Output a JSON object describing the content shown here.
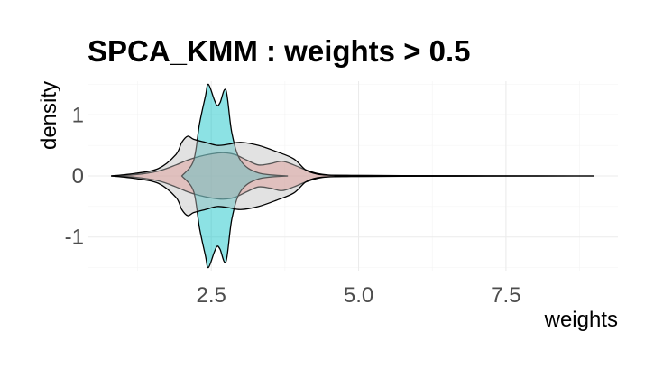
{
  "chart_data": {
    "type": "area",
    "title": "SPCA_KMM : weights > 0.5",
    "xlabel": "weights",
    "ylabel": "density",
    "xlim": [
      0.4,
      9.4
    ],
    "ylim": [
      -1.55,
      1.55
    ],
    "x_ticks": [
      2.5,
      5.0,
      7.5
    ],
    "x_tick_labels": [
      "2.5",
      "5.0",
      "7.5"
    ],
    "y_ticks": [
      -1,
      0,
      1
    ],
    "y_tick_labels": [
      "-1",
      "0",
      "1"
    ],
    "grid": true,
    "legend": "none",
    "mirrored": true,
    "series": [
      {
        "color": "#f8766d",
        "x": [
          0.8,
          1.2,
          1.6,
          1.9,
          2.1,
          2.3,
          2.5,
          2.7,
          2.9,
          3.1,
          3.3,
          3.5,
          3.7,
          3.9,
          4.1,
          4.3,
          4.5,
          4.8,
          5.2,
          6.0,
          7.0,
          9.0
        ],
        "y": [
          0.0,
          0.02,
          0.08,
          0.18,
          0.26,
          0.32,
          0.36,
          0.38,
          0.35,
          0.26,
          0.18,
          0.2,
          0.24,
          0.18,
          0.1,
          0.04,
          0.015,
          0.01,
          0.008,
          0.004,
          0.001,
          0.0
        ]
      },
      {
        "color": "#00bfc4",
        "x": [
          2.0,
          2.2,
          2.3,
          2.4,
          2.45,
          2.55,
          2.6,
          2.65,
          2.75,
          2.85,
          3.0,
          3.3,
          3.8
        ],
        "y": [
          0.0,
          0.25,
          0.85,
          1.3,
          1.5,
          1.25,
          1.15,
          1.2,
          1.4,
          0.7,
          0.25,
          0.05,
          0.0
        ]
      },
      {
        "color": "#bebebe",
        "x": [
          0.8,
          1.2,
          1.6,
          1.9,
          2.0,
          2.1,
          2.2,
          2.4,
          2.6,
          2.8,
          3.0,
          3.3,
          3.6,
          3.9,
          4.1,
          4.3,
          4.6,
          5.2,
          6.5,
          8.0,
          9.0
        ],
        "y": [
          0.0,
          0.04,
          0.12,
          0.35,
          0.55,
          0.65,
          0.6,
          0.55,
          0.5,
          0.52,
          0.55,
          0.5,
          0.4,
          0.28,
          0.1,
          0.03,
          0.01,
          0.006,
          0.003,
          0.001,
          0.0
        ]
      }
    ]
  }
}
